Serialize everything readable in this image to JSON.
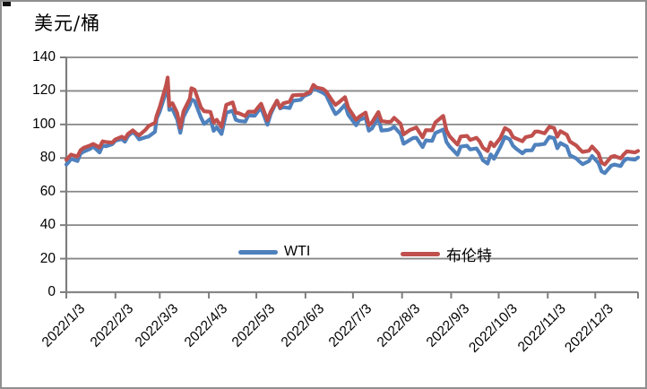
{
  "title": "美元/桶",
  "legend": {
    "items": [
      {
        "label": "WTI",
        "color": "#4F81BD"
      },
      {
        "label": "布伦特",
        "color": "#C0504D"
      }
    ]
  },
  "colors": {
    "wti": "#4F81BD",
    "brent": "#C0504D",
    "gridline": "#878787",
    "axis": "#7e7e7e",
    "frame_border": "#909090"
  },
  "chart_data": {
    "type": "line",
    "title": "美元/桶",
    "ylabel": "美元/桶",
    "xlabel": "",
    "ylim": [
      0,
      140
    ],
    "ytick_interval": 20,
    "yticks": [
      0,
      20,
      40,
      60,
      80,
      100,
      120,
      140
    ],
    "xtick_labels": [
      "2022/1/3",
      "2022/2/3",
      "2022/3/3",
      "2022/4/3",
      "2022/5/3",
      "2022/6/3",
      "2022/7/3",
      "2022/8/3",
      "2022/9/3",
      "2022/10/3",
      "2022/11/3",
      "2022/12/3"
    ],
    "grid": "horizontal",
    "legend_position": "inside-bottom",
    "x_dates": [
      "1/3",
      "1/4",
      "1/6",
      "1/10",
      "1/12",
      "1/14",
      "1/18",
      "1/20",
      "1/24",
      "1/26",
      "1/28",
      "2/1",
      "2/3",
      "2/7",
      "2/9",
      "2/11",
      "2/14",
      "2/16",
      "2/18",
      "2/22",
      "2/24",
      "2/28",
      "3/1",
      "3/3",
      "3/7",
      "3/8",
      "3/9",
      "3/11",
      "3/14",
      "3/16",
      "3/18",
      "3/22",
      "3/23",
      "3/25",
      "3/29",
      "3/31",
      "4/4",
      "4/6",
      "4/8",
      "4/11",
      "4/14",
      "4/18",
      "4/20",
      "4/22",
      "4/26",
      "4/28",
      "5/2",
      "5/4",
      "5/6",
      "5/10",
      "5/12",
      "5/16",
      "5/18",
      "5/20",
      "5/24",
      "5/26",
      "5/31",
      "6/2",
      "6/6",
      "6/8",
      "6/10",
      "6/14",
      "6/16",
      "6/20",
      "6/22",
      "6/24",
      "6/28",
      "6/30",
      "7/5",
      "7/7",
      "7/11",
      "7/13",
      "7/15",
      "7/19",
      "7/21",
      "7/25",
      "7/27",
      "7/29",
      "8/2",
      "8/4",
      "8/8",
      "8/10",
      "8/12",
      "8/16",
      "8/18",
      "8/22",
      "8/24",
      "8/29",
      "8/31",
      "9/2",
      "9/7",
      "9/9",
      "9/13",
      "9/15",
      "9/19",
      "9/21",
      "9/23",
      "9/26",
      "9/28",
      "9/30",
      "10/4",
      "10/7",
      "10/10",
      "10/12",
      "10/14",
      "10/18",
      "10/20",
      "10/24",
      "10/26",
      "10/28",
      "11/1",
      "11/4",
      "11/7",
      "11/9",
      "11/11",
      "11/15",
      "11/17",
      "11/21",
      "11/23",
      "11/25",
      "11/29",
      "12/1",
      "12/5",
      "12/7",
      "12/9",
      "12/13",
      "12/15",
      "12/19",
      "12/21",
      "12/23",
      "12/28",
      "12/30"
    ],
    "series": [
      {
        "name": "WTI",
        "color": "#4F81BD",
        "values": [
          76.1,
          77.0,
          79.5,
          78.2,
          82.6,
          83.8,
          85.4,
          86.9,
          83.3,
          87.4,
          87.0,
          88.2,
          90.3,
          91.3,
          89.7,
          93.1,
          95.5,
          93.7,
          91.1,
          92.4,
          92.8,
          95.7,
          103.4,
          107.7,
          119.4,
          123.7,
          108.7,
          109.3,
          103.0,
          95.0,
          104.7,
          111.8,
          114.9,
          113.9,
          104.2,
          100.3,
          103.3,
          96.2,
          98.3,
          94.3,
          107.0,
          108.2,
          102.8,
          102.1,
          101.7,
          105.4,
          105.2,
          107.8,
          109.8,
          99.8,
          106.1,
          114.2,
          109.6,
          110.3,
          109.8,
          114.1,
          114.7,
          116.9,
          118.5,
          122.1,
          120.7,
          118.9,
          117.6,
          109.6,
          106.2,
          107.6,
          111.8,
          105.8,
          99.5,
          102.7,
          104.1,
          96.3,
          97.6,
          104.2,
          96.4,
          96.7,
          97.3,
          98.6,
          94.4,
          88.5,
          90.8,
          91.9,
          92.1,
          86.5,
          90.5,
          90.2,
          94.9,
          97.0,
          89.6,
          86.9,
          81.9,
          86.8,
          87.3,
          85.1,
          85.7,
          82.9,
          78.7,
          76.7,
          82.2,
          79.5,
          86.5,
          92.6,
          91.1,
          87.3,
          85.6,
          82.8,
          84.5,
          84.6,
          87.9,
          87.9,
          88.4,
          92.6,
          91.8,
          85.8,
          88.9,
          86.9,
          81.6,
          79.7,
          77.9,
          76.3,
          78.2,
          81.2,
          77.0,
          72.0,
          71.0,
          75.4,
          76.1,
          75.2,
          78.3,
          79.6,
          79.0,
          80.3
        ]
      },
      {
        "name": "布伦特",
        "color": "#C0504D",
        "values": [
          79.0,
          80.0,
          82.0,
          80.9,
          84.7,
          86.1,
          87.5,
          88.4,
          86.3,
          90.0,
          89.5,
          89.2,
          91.1,
          92.7,
          91.5,
          94.4,
          96.5,
          94.8,
          93.5,
          96.8,
          99.1,
          101.0,
          105.0,
          110.5,
          123.2,
          128.0,
          111.1,
          112.7,
          106.9,
          98.0,
          107.9,
          115.5,
          121.6,
          120.7,
          110.2,
          107.9,
          107.5,
          101.1,
          102.8,
          98.5,
          111.7,
          113.2,
          107.0,
          106.7,
          105.0,
          107.6,
          107.6,
          110.1,
          112.4,
          102.5,
          107.5,
          114.2,
          110.0,
          112.6,
          113.6,
          117.4,
          117.6,
          117.6,
          119.5,
          123.6,
          122.0,
          121.2,
          119.8,
          114.1,
          111.7,
          113.1,
          116.3,
          110.0,
          102.8,
          104.7,
          107.1,
          99.6,
          101.2,
          107.4,
          102.0,
          101.5,
          101.7,
          104.0,
          100.5,
          94.1,
          96.7,
          97.4,
          98.2,
          92.3,
          96.6,
          96.5,
          101.2,
          105.1,
          96.5,
          93.0,
          88.0,
          92.8,
          93.2,
          90.8,
          92.0,
          89.8,
          86.2,
          84.1,
          89.3,
          87.0,
          91.8,
          97.9,
          96.2,
          92.5,
          91.6,
          90.0,
          92.4,
          93.3,
          95.7,
          95.8,
          94.7,
          98.6,
          97.9,
          92.7,
          96.0,
          93.9,
          89.8,
          87.5,
          85.4,
          83.6,
          84.3,
          86.9,
          82.7,
          77.2,
          76.1,
          80.7,
          81.2,
          79.8,
          82.2,
          84.0,
          83.3,
          84.2
        ]
      }
    ]
  }
}
